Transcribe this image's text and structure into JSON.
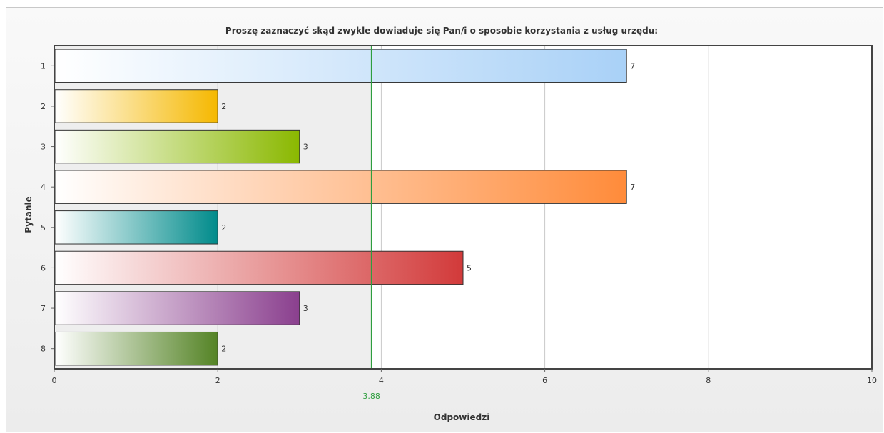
{
  "chart_data": {
    "type": "bar",
    "orientation": "horizontal",
    "title": "Proszę zaznaczyć skąd zwykle dowiaduje się Pan/i o sposobie korzystania z usług urzędu:",
    "xlabel": "Odpowiedzi",
    "ylabel": "Pytanie",
    "categories": [
      "1",
      "2",
      "3",
      "4",
      "5",
      "6",
      "7",
      "8"
    ],
    "values": [
      7,
      2,
      3,
      7,
      2,
      5,
      3,
      2
    ],
    "xlim": [
      0,
      10
    ],
    "xticks": [
      "0",
      "2",
      "4",
      "6",
      "8",
      "10"
    ],
    "grid": true,
    "legend": "none",
    "average_line": {
      "value": 3.88,
      "label": "3.88",
      "color": "#2e9e3e"
    },
    "bar_colors": [
      "#a9d1f7",
      "#f5b800",
      "#8ab800",
      "#ff8b3a",
      "#008b8b",
      "#d23a3a",
      "#8a3f8e",
      "#548325"
    ]
  }
}
